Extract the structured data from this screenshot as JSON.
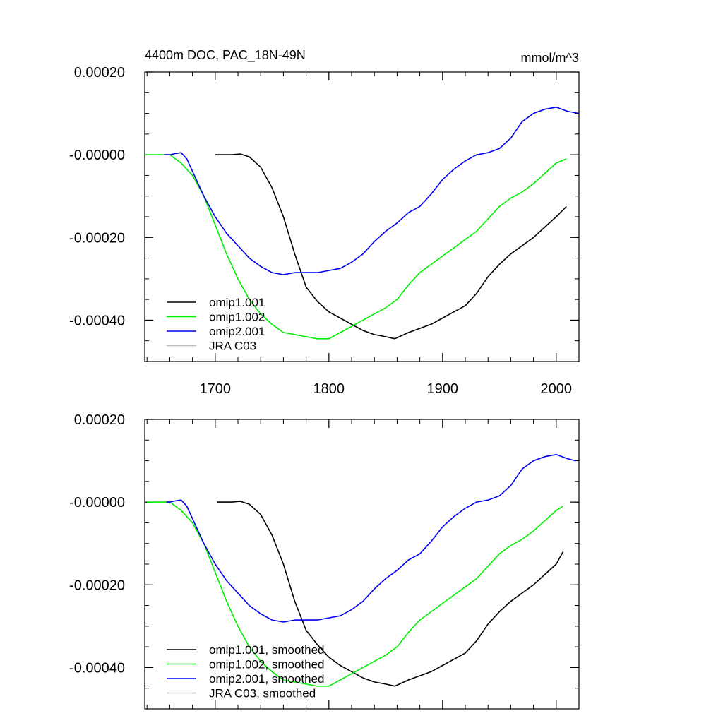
{
  "colors": {
    "omip1_001": "#000000",
    "omip1_002": "#00ee00",
    "omip2_001": "#0000ee",
    "jra_c03": "#bbbbbb"
  },
  "chart_data": [
    {
      "type": "line",
      "title": "4400m DOC, PAC_18N-49N",
      "units": "mmol/m^3",
      "xlim": [
        1638,
        2020
      ],
      "ylim": [
        -0.0005,
        0.0002
      ],
      "x_ticks": [
        1700,
        1800,
        1900,
        2000
      ],
      "x_tick_labels": [
        "1700",
        "1800",
        "1900",
        "2000"
      ],
      "y_ticks": [
        0.0002,
        0.0,
        -0.0002,
        -0.0004
      ],
      "y_tick_labels": [
        "0.00020",
        "-0.00000",
        "-0.00020",
        "-0.00040"
      ],
      "legend_position": "bottom-left",
      "series": [
        {
          "name": "omip1.001",
          "color_key": "omip1_001",
          "x": [
            1700,
            1710,
            1715,
            1722,
            1730,
            1740,
            1750,
            1760,
            1770,
            1780,
            1790,
            1800,
            1810,
            1820,
            1830,
            1840,
            1850,
            1858,
            1862,
            1870,
            1880,
            1890,
            1900,
            1910,
            1920,
            1930,
            1940,
            1950,
            1960,
            1970,
            1980,
            1990,
            2000,
            2009
          ],
          "y": [
            0.0,
            0.0,
            0.0,
            2e-06,
            -5e-06,
            -3e-05,
            -8e-05,
            -0.00015,
            -0.00024,
            -0.00032,
            -0.000355,
            -0.00038,
            -0.000395,
            -0.00041,
            -0.000425,
            -0.000435,
            -0.00044,
            -0.000445,
            -0.00044,
            -0.00043,
            -0.00042,
            -0.00041,
            -0.000395,
            -0.00038,
            -0.000365,
            -0.000335,
            -0.000295,
            -0.000265,
            -0.00024,
            -0.00022,
            -0.0002,
            -0.000175,
            -0.00015,
            -0.000125
          ]
        },
        {
          "name": "omip1.002",
          "color_key": "omip1_002",
          "x": [
            1638,
            1650,
            1660,
            1670,
            1680,
            1690,
            1700,
            1710,
            1720,
            1730,
            1740,
            1750,
            1760,
            1770,
            1780,
            1790,
            1800,
            1810,
            1820,
            1830,
            1840,
            1850,
            1860,
            1870,
            1880,
            1890,
            1900,
            1910,
            1920,
            1930,
            1940,
            1950,
            1960,
            1970,
            1980,
            1990,
            2000,
            2009
          ],
          "y": [
            0.0,
            0.0,
            0.0,
            -2e-05,
            -5e-05,
            -0.0001,
            -0.00017,
            -0.00024,
            -0.0003,
            -0.00035,
            -0.000385,
            -0.00041,
            -0.00043,
            -0.000435,
            -0.00044,
            -0.000445,
            -0.000445,
            -0.00043,
            -0.000415,
            -0.0004,
            -0.000385,
            -0.00037,
            -0.00035,
            -0.000315,
            -0.000285,
            -0.000265,
            -0.000245,
            -0.000225,
            -0.000205,
            -0.000185,
            -0.000155,
            -0.000125,
            -0.000105,
            -9e-05,
            -7e-05,
            -4.5e-05,
            -2e-05,
            -1e-05
          ]
        },
        {
          "name": "omip2.001",
          "color_key": "omip2_001",
          "x": [
            1655,
            1660,
            1665,
            1670,
            1675,
            1680,
            1690,
            1700,
            1710,
            1720,
            1730,
            1740,
            1750,
            1760,
            1770,
            1780,
            1790,
            1800,
            1810,
            1820,
            1830,
            1840,
            1850,
            1860,
            1870,
            1880,
            1890,
            1900,
            1910,
            1920,
            1930,
            1940,
            1950,
            1960,
            1970,
            1980,
            1990,
            2000,
            2010,
            2020
          ],
          "y": [
            0.0,
            0.0,
            3e-06,
            5e-06,
            -1e-05,
            -4e-05,
            -0.0001,
            -0.00015,
            -0.00019,
            -0.00022,
            -0.00025,
            -0.00027,
            -0.000285,
            -0.00029,
            -0.000285,
            -0.000285,
            -0.000285,
            -0.00028,
            -0.000275,
            -0.00026,
            -0.00024,
            -0.00021,
            -0.000185,
            -0.000165,
            -0.00014,
            -0.000125,
            -9.5e-05,
            -6e-05,
            -3.5e-05,
            -1.5e-05,
            0.0,
            5e-06,
            1.5e-05,
            4e-05,
            8e-05,
            0.0001,
            0.00011,
            0.000115,
            0.000105,
            0.0001
          ]
        },
        {
          "name": "JRA C03",
          "color_key": "jra_c03",
          "x": [],
          "y": []
        }
      ]
    },
    {
      "type": "line",
      "title": "",
      "units": "",
      "xlim": [
        1638,
        2020
      ],
      "ylim": [
        -0.0005,
        0.0002
      ],
      "x_ticks": [
        1700,
        1800,
        1900,
        2000
      ],
      "x_tick_labels": [],
      "y_ticks": [
        0.0002,
        0.0,
        -0.0002,
        -0.0004
      ],
      "y_tick_labels": [
        "0.00020",
        "-0.00000",
        "-0.00020",
        "-0.00040"
      ],
      "legend_position": "bottom-left",
      "series": [
        {
          "name": "omip1.001, smoothed",
          "color_key": "omip1_001",
          "x": [
            1702,
            1710,
            1715,
            1722,
            1730,
            1740,
            1750,
            1760,
            1770,
            1780,
            1790,
            1800,
            1810,
            1820,
            1830,
            1840,
            1850,
            1858,
            1862,
            1870,
            1880,
            1890,
            1900,
            1910,
            1920,
            1930,
            1940,
            1950,
            1960,
            1970,
            1980,
            1990,
            2000,
            2006
          ],
          "y": [
            0.0,
            0.0,
            0.0,
            2e-06,
            -5e-06,
            -3e-05,
            -8e-05,
            -0.00015,
            -0.00024,
            -0.00031,
            -0.000345,
            -0.000375,
            -0.000395,
            -0.00041,
            -0.000425,
            -0.000435,
            -0.00044,
            -0.000445,
            -0.00044,
            -0.00043,
            -0.00042,
            -0.00041,
            -0.000395,
            -0.00038,
            -0.000365,
            -0.000335,
            -0.000295,
            -0.000265,
            -0.00024,
            -0.00022,
            -0.0002,
            -0.000175,
            -0.00015,
            -0.00012
          ]
        },
        {
          "name": "omip1.002, smoothed",
          "color_key": "omip1_002",
          "x": [
            1640,
            1650,
            1660,
            1670,
            1680,
            1690,
            1700,
            1710,
            1720,
            1730,
            1740,
            1750,
            1760,
            1770,
            1780,
            1790,
            1800,
            1810,
            1820,
            1830,
            1840,
            1850,
            1860,
            1870,
            1880,
            1890,
            1900,
            1910,
            1920,
            1930,
            1940,
            1950,
            1960,
            1970,
            1980,
            1990,
            2000,
            2006
          ],
          "y": [
            0.0,
            0.0,
            0.0,
            -2e-05,
            -5e-05,
            -0.0001,
            -0.00017,
            -0.00024,
            -0.0003,
            -0.00035,
            -0.000385,
            -0.00041,
            -0.00043,
            -0.000435,
            -0.00044,
            -0.000445,
            -0.000445,
            -0.00043,
            -0.000415,
            -0.0004,
            -0.000385,
            -0.00037,
            -0.00035,
            -0.000315,
            -0.000285,
            -0.000265,
            -0.000245,
            -0.000225,
            -0.000205,
            -0.000185,
            -0.000155,
            -0.000125,
            -0.000105,
            -9e-05,
            -7e-05,
            -4.5e-05,
            -2e-05,
            -1e-05
          ]
        },
        {
          "name": "omip2.001, smoothed",
          "color_key": "omip2_001",
          "x": [
            1657,
            1660,
            1665,
            1670,
            1675,
            1680,
            1690,
            1700,
            1710,
            1720,
            1730,
            1740,
            1750,
            1760,
            1770,
            1780,
            1790,
            1800,
            1810,
            1820,
            1830,
            1840,
            1850,
            1860,
            1870,
            1880,
            1890,
            1900,
            1910,
            1920,
            1930,
            1940,
            1950,
            1960,
            1970,
            1980,
            1990,
            2000,
            2010,
            2017
          ],
          "y": [
            0.0,
            0.0,
            3e-06,
            5e-06,
            -1e-05,
            -4e-05,
            -0.0001,
            -0.00015,
            -0.00019,
            -0.00022,
            -0.00025,
            -0.00027,
            -0.000285,
            -0.00029,
            -0.000285,
            -0.000285,
            -0.000285,
            -0.00028,
            -0.000275,
            -0.00026,
            -0.00024,
            -0.00021,
            -0.000185,
            -0.000165,
            -0.00014,
            -0.000125,
            -9.5e-05,
            -6e-05,
            -3.5e-05,
            -1.5e-05,
            0.0,
            5e-06,
            1.5e-05,
            4e-05,
            8e-05,
            0.0001,
            0.00011,
            0.000115,
            0.000105,
            0.0001
          ]
        },
        {
          "name": "JRA C03, smoothed",
          "color_key": "jra_c03",
          "x": [],
          "y": []
        }
      ]
    }
  ]
}
